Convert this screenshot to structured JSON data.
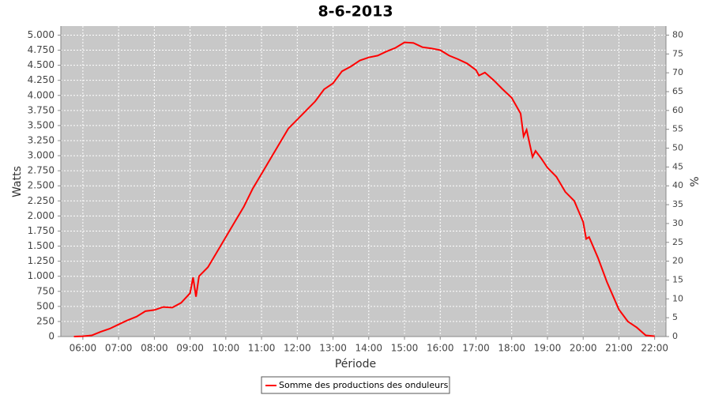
{
  "chart_data": {
    "type": "line",
    "title": "8-6-2013",
    "x_label": "Période",
    "y_label": "Watts",
    "y2_label": "%",
    "x": [
      "05:45",
      "06:00",
      "06:15",
      "06:30",
      "06:45",
      "07:00",
      "07:15",
      "07:30",
      "07:45",
      "08:00",
      "08:15",
      "08:30",
      "08:45",
      "09:00",
      "09:05",
      "09:10",
      "09:15",
      "09:30",
      "09:45",
      "10:00",
      "10:15",
      "10:30",
      "10:45",
      "11:00",
      "11:15",
      "11:30",
      "11:45",
      "12:00",
      "12:15",
      "12:30",
      "12:45",
      "13:00",
      "13:15",
      "13:30",
      "13:45",
      "14:00",
      "14:15",
      "14:30",
      "14:45",
      "15:00",
      "15:15",
      "15:30",
      "15:45",
      "16:00",
      "16:15",
      "16:30",
      "16:45",
      "17:00",
      "17:05",
      "17:15",
      "17:30",
      "17:45",
      "18:00",
      "18:15",
      "18:20",
      "18:25",
      "18:35",
      "18:40",
      "18:50",
      "19:00",
      "19:15",
      "19:30",
      "19:45",
      "20:00",
      "20:05",
      "20:10",
      "20:25",
      "20:40",
      "21:00",
      "21:15",
      "21:30",
      "21:45",
      "22:00"
    ],
    "series": [
      {
        "name": "Somme des productions des onduleurs",
        "color": "#ff0000",
        "values": [
          0,
          5,
          20,
          80,
          130,
          200,
          270,
          330,
          420,
          440,
          490,
          480,
          560,
          720,
          980,
          660,
          1000,
          1150,
          1400,
          1650,
          1900,
          2150,
          2450,
          2700,
          2950,
          3200,
          3450,
          3600,
          3750,
          3900,
          4100,
          4200,
          4400,
          4480,
          4580,
          4630,
          4660,
          4730,
          4790,
          4880,
          4870,
          4800,
          4780,
          4750,
          4660,
          4600,
          4530,
          4420,
          4330,
          4380,
          4250,
          4100,
          3960,
          3700,
          3320,
          3430,
          2980,
          3080,
          2950,
          2800,
          2650,
          2400,
          2250,
          1900,
          1620,
          1650,
          1300,
          900,
          450,
          250,
          150,
          20,
          5
        ]
      }
    ],
    "xlim": [
      "05:23",
      "22:19"
    ],
    "xticks": [
      "06:00",
      "07:00",
      "08:00",
      "09:00",
      "10:00",
      "11:00",
      "12:00",
      "13:00",
      "14:00",
      "15:00",
      "16:00",
      "17:00",
      "18:00",
      "19:00",
      "20:00",
      "21:00",
      "22:00"
    ],
    "ylim": [
      0,
      5150
    ],
    "yticks": [
      0,
      250,
      500,
      750,
      {
        "value": 1000,
        "label": "1.000"
      },
      {
        "value": 1250,
        "label": "1.250"
      },
      {
        "value": 1500,
        "label": "1.500"
      },
      {
        "value": 1750,
        "label": "1.750"
      },
      {
        "value": 2000,
        "label": "2.000"
      },
      {
        "value": 2250,
        "label": "2.250"
      },
      {
        "value": 2500,
        "label": "2.500"
      },
      {
        "value": 2750,
        "label": "2.750"
      },
      {
        "value": 3000,
        "label": "3.000"
      },
      {
        "value": 3250,
        "label": "3.250"
      },
      {
        "value": 3500,
        "label": "3.500"
      },
      {
        "value": 3750,
        "label": "3.750"
      },
      {
        "value": 4000,
        "label": "4.000"
      },
      {
        "value": 4250,
        "label": "4.250"
      },
      {
        "value": 4500,
        "label": "4.500"
      },
      {
        "value": 4750,
        "label": "4.750"
      },
      {
        "value": 5000,
        "label": "5.000"
      }
    ],
    "y2lim": [
      0,
      82.4
    ],
    "y2ticks": [
      0,
      5,
      10,
      15,
      20,
      25,
      30,
      35,
      40,
      45,
      50,
      55,
      60,
      65,
      70,
      75,
      80
    ],
    "grid": true,
    "legend": "bottom"
  }
}
